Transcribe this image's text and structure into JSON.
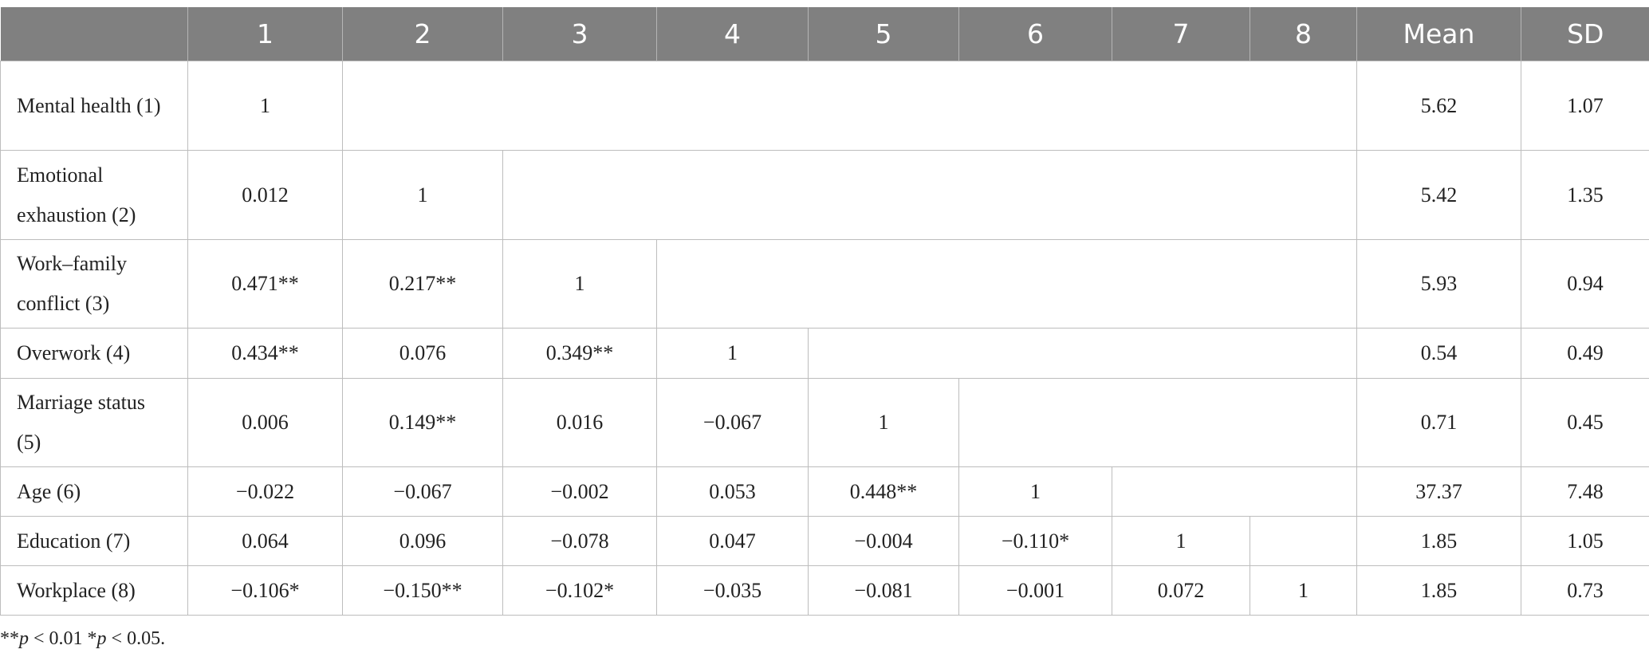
{
  "table": {
    "header": [
      "1",
      "2",
      "3",
      "4",
      "5",
      "6",
      "7",
      "8",
      "Mean",
      "SD"
    ],
    "rows": [
      {
        "label": "Mental health (1)",
        "cells": [
          "1"
        ],
        "mean": "5.62",
        "sd": "1.07"
      },
      {
        "label": "Emotional exhaustion (2)",
        "cells": [
          "0.012",
          "1"
        ],
        "mean": "5.42",
        "sd": "1.35"
      },
      {
        "label": "Work–family conflict (3)",
        "cells": [
          "0.471**",
          "0.217**",
          "1"
        ],
        "mean": "5.93",
        "sd": "0.94"
      },
      {
        "label": "Overwork (4)",
        "cells": [
          "0.434**",
          "0.076",
          "0.349**",
          "1"
        ],
        "mean": "0.54",
        "sd": "0.49"
      },
      {
        "label": "Marriage status (5)",
        "cells": [
          "0.006",
          "0.149**",
          "0.016",
          "−0.067",
          "1"
        ],
        "mean": "0.71",
        "sd": "0.45"
      },
      {
        "label": "Age (6)",
        "cells": [
          "−0.022",
          "−0.067",
          "−0.002",
          "0.053",
          "0.448**",
          "1"
        ],
        "mean": "37.37",
        "sd": "7.48"
      },
      {
        "label": "Education (7)",
        "cells": [
          "0.064",
          "0.096",
          "−0.078",
          "0.047",
          "−0.004",
          "−0.110*",
          "1"
        ],
        "mean": "1.85",
        "sd": "1.05"
      },
      {
        "label": "Workplace (8)",
        "cells": [
          "−0.106*",
          "−0.150**",
          "−0.102*",
          "−0.035",
          "−0.081",
          "−0.001",
          "0.072",
          "1"
        ],
        "mean": "1.85",
        "sd": "0.73"
      }
    ]
  },
  "footnote": [
    "**",
    "p",
    " < 0.01 *",
    "p",
    " < 0.05."
  ]
}
